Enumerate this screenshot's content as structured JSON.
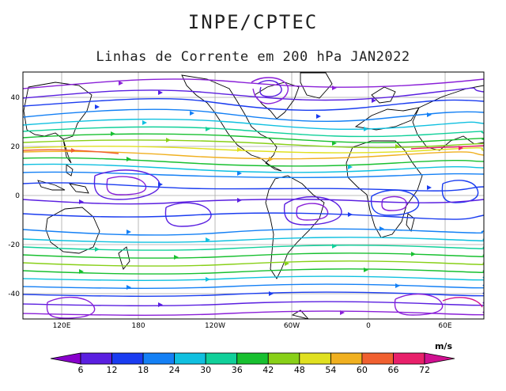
{
  "header": {
    "org": "INPE/CPTEC",
    "title": "Linhas de Corrente em 200 hPa JAN2022"
  },
  "axes": {
    "lon_labels": [
      "120E",
      "180",
      "120W",
      "60W",
      "0",
      "60E"
    ],
    "lat_labels": [
      "40",
      "20",
      "0",
      "-20",
      "-40"
    ]
  },
  "colorbar": {
    "unit": "m/s",
    "labels": [
      "6",
      "12",
      "18",
      "24",
      "30",
      "36",
      "42",
      "48",
      "54",
      "60",
      "66",
      "72"
    ],
    "colors": [
      "#8800cc",
      "#5a1fe0",
      "#1a3cf0",
      "#1480f5",
      "#10c0e0",
      "#10d09a",
      "#18c030",
      "#88d018",
      "#e0e020",
      "#f0b020",
      "#f06030",
      "#e8206a",
      "#d01090"
    ]
  }
}
